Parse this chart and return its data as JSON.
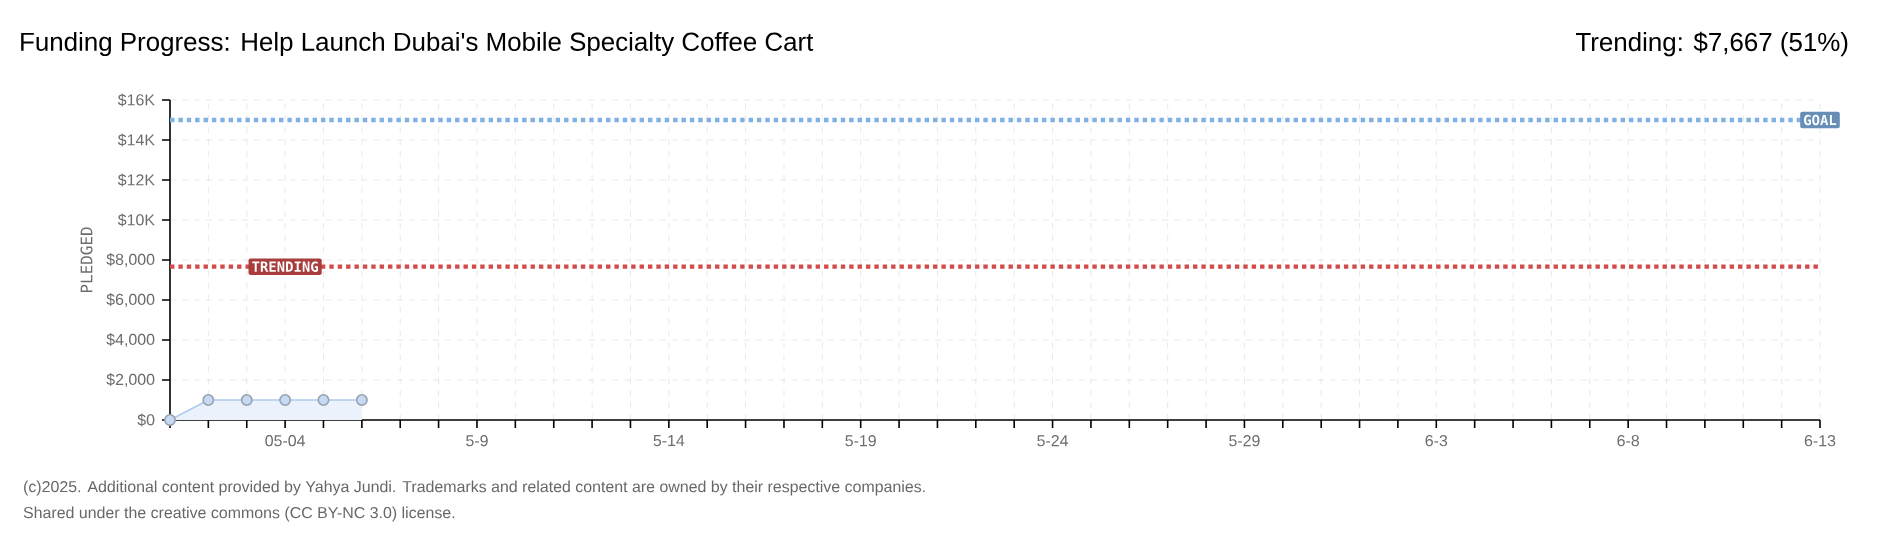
{
  "chart_data": {
    "type": "area",
    "title": "Funding Progress: Help Launch Dubai's Mobile Specialty Coffee Cart",
    "subtitle": "Trending: $7,667 (51%)",
    "ylabel": "PLEDGED",
    "x": [
      "2025-05-01",
      "2025-05-02",
      "2025-05-03",
      "2025-05-04",
      "2025-05-05",
      "2025-05-06"
    ],
    "series": [
      {
        "color": "#aecbee",
        "values": [
          0,
          1000,
          1000,
          1000,
          1000,
          1000
        ]
      }
    ],
    "marker": "circle",
    "grid": true,
    "xlim": [
      "2025-05-01",
      "2025-06-13"
    ],
    "xticks": [
      {
        "value": "2025-05-01",
        "label": null
      },
      {
        "value": "2025-05-02",
        "label": null
      },
      {
        "value": "2025-05-03",
        "label": null
      },
      {
        "value": "2025-05-04",
        "label": "05-04"
      },
      {
        "value": "2025-05-05",
        "label": null
      },
      {
        "value": "2025-05-06",
        "label": null
      },
      {
        "value": "2025-05-07",
        "label": null
      },
      {
        "value": "2025-05-08",
        "label": null
      },
      {
        "value": "2025-05-09",
        "label": "5-9"
      },
      {
        "value": "2025-05-10",
        "label": null
      },
      {
        "value": "2025-05-11",
        "label": null
      },
      {
        "value": "2025-05-12",
        "label": null
      },
      {
        "value": "2025-05-13",
        "label": null
      },
      {
        "value": "2025-05-14",
        "label": "5-14"
      },
      {
        "value": "2025-05-15",
        "label": null
      },
      {
        "value": "2025-05-16",
        "label": null
      },
      {
        "value": "2025-05-17",
        "label": null
      },
      {
        "value": "2025-05-18",
        "label": null
      },
      {
        "value": "2025-05-19",
        "label": "5-19"
      },
      {
        "value": "2025-05-20",
        "label": null
      },
      {
        "value": "2025-05-21",
        "label": null
      },
      {
        "value": "2025-05-22",
        "label": null
      },
      {
        "value": "2025-05-23",
        "label": null
      },
      {
        "value": "2025-05-24",
        "label": "5-24"
      },
      {
        "value": "2025-05-25",
        "label": null
      },
      {
        "value": "2025-05-26",
        "label": null
      },
      {
        "value": "2025-05-27",
        "label": null
      },
      {
        "value": "2025-05-28",
        "label": null
      },
      {
        "value": "2025-05-29",
        "label": "5-29"
      },
      {
        "value": "2025-05-30",
        "label": null
      },
      {
        "value": "2025-05-31",
        "label": null
      },
      {
        "value": "2025-06-01",
        "label": null
      },
      {
        "value": "2025-06-02",
        "label": null
      },
      {
        "value": "2025-06-03",
        "label": "6-3"
      },
      {
        "value": "2025-06-04",
        "label": null
      },
      {
        "value": "2025-06-05",
        "label": null
      },
      {
        "value": "2025-06-06",
        "label": null
      },
      {
        "value": "2025-06-07",
        "label": null
      },
      {
        "value": "2025-06-08",
        "label": "6-8"
      },
      {
        "value": "2025-06-09",
        "label": null
      },
      {
        "value": "2025-06-10",
        "label": null
      },
      {
        "value": "2025-06-11",
        "label": null
      },
      {
        "value": "2025-06-12",
        "label": null
      },
      {
        "value": "2025-06-13",
        "label": "6-13"
      }
    ],
    "ylim": [
      0,
      16000
    ],
    "yticks": [
      {
        "value": 0,
        "label": "$0"
      },
      {
        "value": 2000,
        "label": "$2,000"
      },
      {
        "value": 4000,
        "label": "$4,000"
      },
      {
        "value": 6000,
        "label": "$6,000"
      },
      {
        "value": 8000,
        "label": "$8,000"
      },
      {
        "value": 10000,
        "label": "$10K"
      },
      {
        "value": 12000,
        "label": "$12K"
      },
      {
        "value": 14000,
        "label": "$14K"
      },
      {
        "value": 16000,
        "label": "$16K"
      }
    ],
    "ref_lines": [
      {
        "axis": "y",
        "value": 15000,
        "label": "GOAL",
        "color": "#80b1e4",
        "line_style": "dotted"
      },
      {
        "axis": "y",
        "value": 7667,
        "label": "TRENDING",
        "color": "#d34c4c",
        "line_style": "dotted"
      }
    ],
    "annotations": [
      "(c)2025. Additional content provided by Yahya Jundi. Trademarks and related content are owned by their respective companies.",
      "Shared under the creative commons (CC BY-NC 3.0) license."
    ]
  }
}
